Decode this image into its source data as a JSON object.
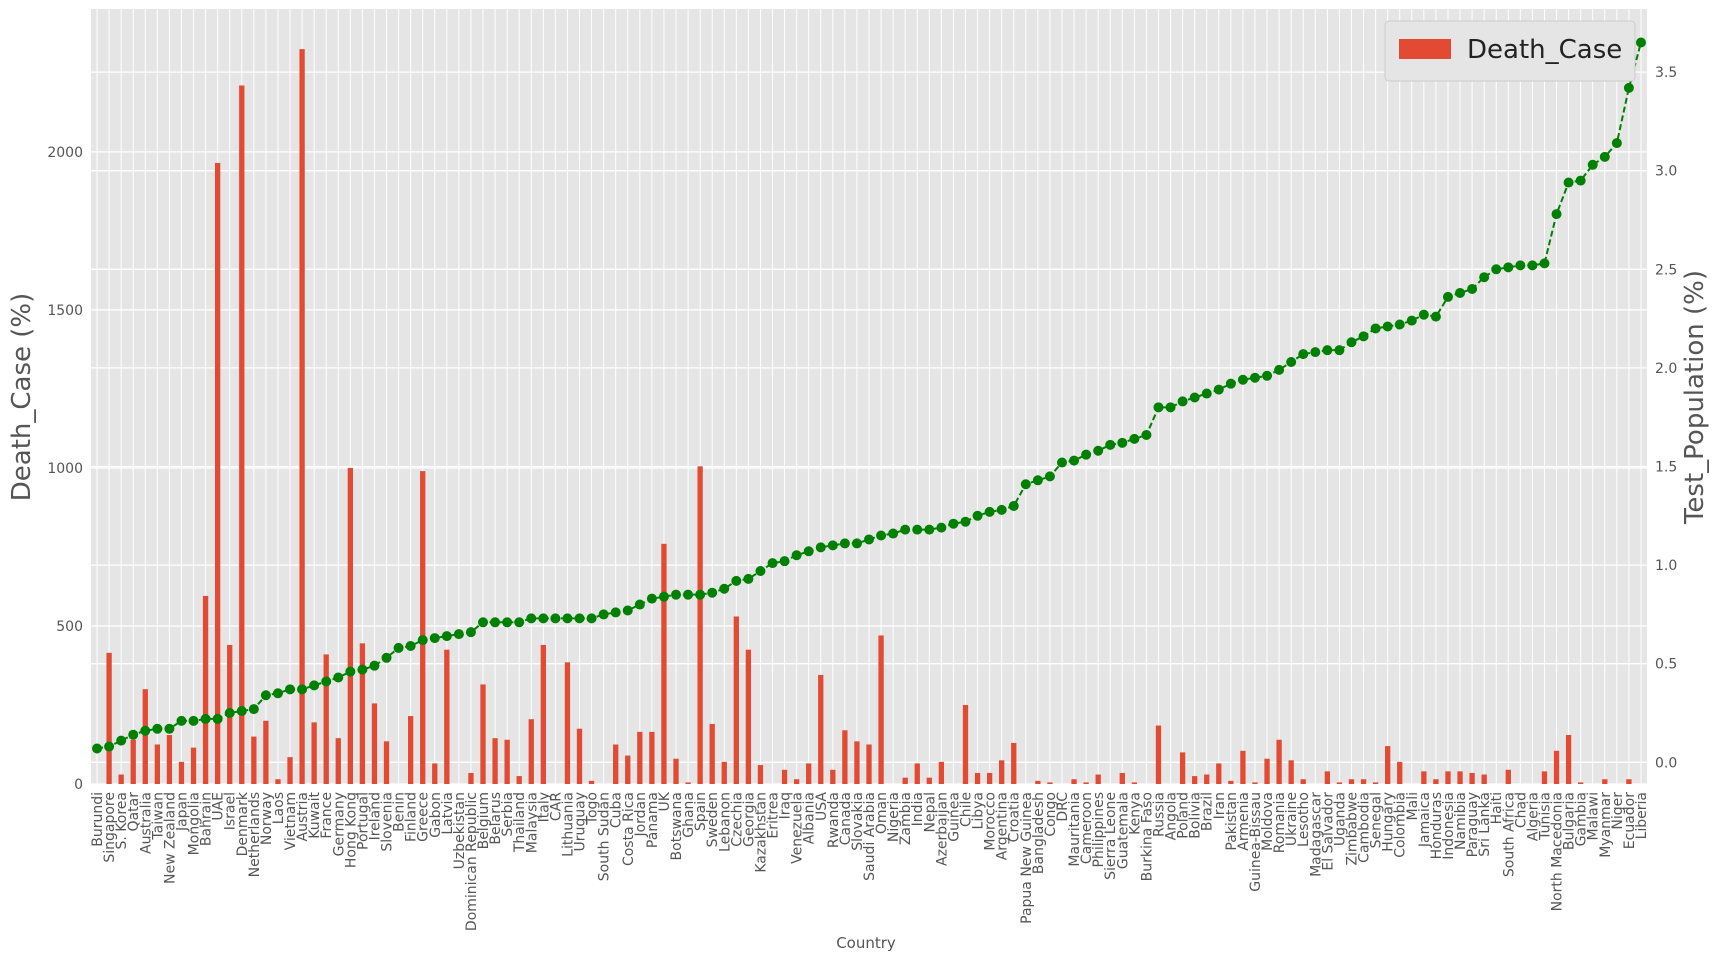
{
  "chart_data": {
    "type": "bar",
    "x_label": "Country",
    "y_label": "Death_Case (%)",
    "y2_label": "Test_Population (%)",
    "legend": "upper right",
    "grid": true,
    "categories": [
      "Burundi",
      "Singapore",
      "S. Korea",
      "Qatar",
      "Australia",
      "Taiwan",
      "New Zealand",
      "Japan",
      "Mongolia",
      "Bahrain",
      "UAE",
      "Israel",
      "Denmark",
      "Netherlands",
      "Norway",
      "Laos",
      "Vietnam",
      "Austria",
      "Kuwait",
      "France",
      "Germany",
      "Hong Kong",
      "Portugal",
      "Ireland",
      "Slovenia",
      "Benin",
      "Finland",
      "Greece",
      "Gabon",
      "Latvia",
      "Uzbekistan",
      "Dominican Republic",
      "Belgium",
      "Belarus",
      "Serbia",
      "Thailand",
      "Malaysia",
      "Italy",
      "CAR",
      "Lithuania",
      "Uruguay",
      "Togo",
      "South Sudan",
      "Cuba",
      "Costa Rica",
      "Jordan",
      "Panama",
      "UK",
      "Botswana",
      "Ghana",
      "Spain",
      "Sweden",
      "Lebanon",
      "Czechia",
      "Georgia",
      "Kazakhstan",
      "Eritrea",
      "Iraq",
      "Venezuela",
      "Albania",
      "USA",
      "Rwanda",
      "Canada",
      "Slovakia",
      "Saudi Arabia",
      "Oman",
      "Nigeria",
      "Zambia",
      "India",
      "Nepal",
      "Azerbaijan",
      "Guinea",
      "Chile",
      "Libya",
      "Morocco",
      "Argentina",
      "Croatia",
      "Papua New Guinea",
      "Bangladesh",
      "Congo",
      "DRC",
      "Mauritania",
      "Cameroon",
      "Philippines",
      "Sierra Leone",
      "Guatemala",
      "Kenya",
      "Burkina Faso",
      "Russia",
      "Angola",
      "Poland",
      "Bolivia",
      "Brazil",
      "Iran",
      "Pakistan",
      "Armenia",
      "Guinea-Bissau",
      "Moldova",
      "Romania",
      "Ukraine",
      "Lesotho",
      "Madagascar",
      "El Salvador",
      "Uganda",
      "Zimbabwe",
      "Cambodia",
      "Senegal",
      "Hungary",
      "Colombia",
      "Mali",
      "Jamaica",
      "Honduras",
      "Indonesia",
      "Namibia",
      "Paraguay",
      "Sri Lanka",
      "Haiti",
      "South Africa",
      "Chad",
      "Algeria",
      "Tunisia",
      "North Macedonia",
      "Bulgaria",
      "Gambia",
      "Malawi",
      "Myanmar",
      "Niger",
      "Ecuador",
      "Liberia"
    ],
    "series": [
      {
        "name": "Death_Case",
        "color": "#e24a33",
        "values": [
          0,
          415,
          30,
          140,
          300,
          125,
          155,
          70,
          115,
          595,
          1965,
          440,
          2210,
          150,
          200,
          15,
          85,
          2325,
          195,
          410,
          145,
          1000,
          445,
          255,
          135,
          0,
          215,
          990,
          65,
          425,
          0,
          35,
          315,
          145,
          140,
          25,
          205,
          440,
          0,
          385,
          175,
          10,
          0,
          125,
          90,
          165,
          165,
          760,
          80,
          5,
          1005,
          190,
          70,
          530,
          425,
          60,
          0,
          45,
          15,
          65,
          345,
          45,
          170,
          135,
          125,
          470,
          0,
          20,
          65,
          20,
          70,
          0,
          250,
          35,
          35,
          75,
          130,
          0,
          10,
          5,
          0,
          15,
          5,
          30,
          0,
          35,
          5,
          0,
          185,
          0,
          100,
          25,
          30,
          65,
          10,
          105,
          5,
          80,
          140,
          75,
          15,
          0,
          40,
          5,
          15,
          15,
          5,
          120,
          70,
          0,
          40,
          15,
          40,
          40,
          35,
          30,
          0,
          45,
          0,
          0,
          40,
          105,
          155,
          5,
          0,
          15,
          0,
          15,
          0
        ]
      },
      {
        "type": "line",
        "axis": "y2",
        "color": "#008000",
        "values": [
          0.07,
          0.08,
          0.11,
          0.14,
          0.16,
          0.17,
          0.17,
          0.21,
          0.21,
          0.22,
          0.22,
          0.25,
          0.26,
          0.27,
          0.34,
          0.35,
          0.37,
          0.37,
          0.39,
          0.41,
          0.43,
          0.46,
          0.47,
          0.49,
          0.53,
          0.58,
          0.59,
          0.62,
          0.63,
          0.64,
          0.65,
          0.66,
          0.71,
          0.71,
          0.71,
          0.71,
          0.73,
          0.73,
          0.73,
          0.73,
          0.73,
          0.73,
          0.75,
          0.76,
          0.77,
          0.8,
          0.83,
          0.84,
          0.85,
          0.85,
          0.85,
          0.86,
          0.88,
          0.92,
          0.93,
          0.97,
          1.01,
          1.02,
          1.05,
          1.07,
          1.09,
          1.1,
          1.11,
          1.11,
          1.13,
          1.15,
          1.16,
          1.18,
          1.18,
          1.18,
          1.19,
          1.21,
          1.22,
          1.25,
          1.27,
          1.28,
          1.3,
          1.41,
          1.43,
          1.45,
          1.52,
          1.53,
          1.56,
          1.58,
          1.61,
          1.62,
          1.64,
          1.66,
          1.8,
          1.8,
          1.83,
          1.85,
          1.87,
          1.89,
          1.92,
          1.94,
          1.95,
          1.96,
          1.99,
          2.03,
          2.07,
          2.08,
          2.09,
          2.09,
          2.13,
          2.16,
          2.2,
          2.21,
          2.22,
          2.24,
          2.27,
          2.26,
          2.36,
          2.38,
          2.4,
          2.46,
          2.5,
          2.51,
          2.52,
          2.52,
          2.53,
          2.78,
          2.94,
          2.95,
          3.03,
          3.07,
          3.14,
          3.42,
          3.65
        ]
      }
    ],
    "ylim": [
      0,
      2452
    ],
    "yticks": [
      0,
      500,
      1000,
      1500,
      2000
    ],
    "y2lim": [
      -0.11,
      3.82
    ],
    "y2ticks": [
      {
        "value": 0,
        "label": "0.0"
      },
      0.5,
      {
        "value": 1,
        "label": "1.0"
      },
      1.5,
      {
        "value": 2,
        "label": "2.0"
      },
      2.5,
      {
        "value": 3,
        "label": "3.0"
      },
      3.5
    ]
  }
}
